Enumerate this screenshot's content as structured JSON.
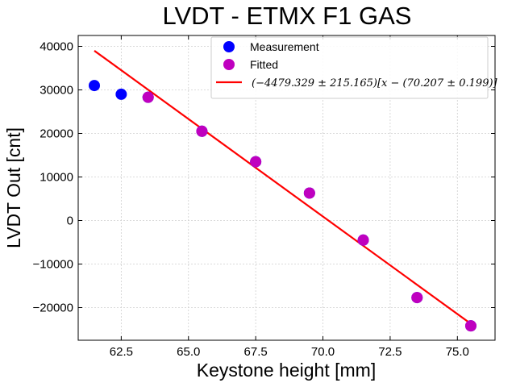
{
  "chart_data": {
    "type": "scatter",
    "title": "LVDT - ETMX F1 GAS",
    "xlabel": "Keystone height [mm]",
    "ylabel": "LVDT Out [cnt]",
    "xlim": [
      60.9,
      76.4
    ],
    "ylim": [
      -27500,
      42500
    ],
    "xticks": [
      62.5,
      65.0,
      67.5,
      70.0,
      72.5,
      75.0
    ],
    "xtick_labels": [
      "62.5",
      "65.0",
      "67.5",
      "70.0",
      "72.5",
      "75.0"
    ],
    "yticks": [
      -20000,
      -10000,
      0,
      10000,
      20000,
      30000,
      40000
    ],
    "ytick_labels": [
      "−20000",
      "−10000",
      "0",
      "10000",
      "20000",
      "30000",
      "40000"
    ],
    "grid": true,
    "legend_position": "top-right",
    "series": [
      {
        "name": "Measurement",
        "kind": "scatter",
        "color": "#0000ff",
        "x": [
          61.5,
          62.5,
          63.5,
          65.5,
          67.5,
          69.5,
          71.5,
          73.5,
          75.5
        ],
        "y": [
          31000,
          29000,
          28300,
          20500,
          13500,
          6300,
          -4500,
          -17700,
          -24200
        ]
      },
      {
        "name": "Fitted",
        "kind": "scatter",
        "color": "#bf00bf",
        "x": [
          63.5,
          65.5,
          67.5,
          69.5,
          71.5,
          73.5,
          75.5
        ],
        "y": [
          28300,
          20500,
          13500,
          6300,
          -4500,
          -17700,
          -24200
        ]
      },
      {
        "name": "$(-4479.329 \\pm 215.165)[x-(70.207 \\pm 0.199)]$",
        "display": "(−4479.329 ± 215.165)[x − (70.207 ± 0.199)]",
        "kind": "line",
        "color": "#ff0000",
        "x": [
          61.5,
          75.5
        ],
        "y": [
          38995,
          -23716
        ]
      }
    ]
  }
}
